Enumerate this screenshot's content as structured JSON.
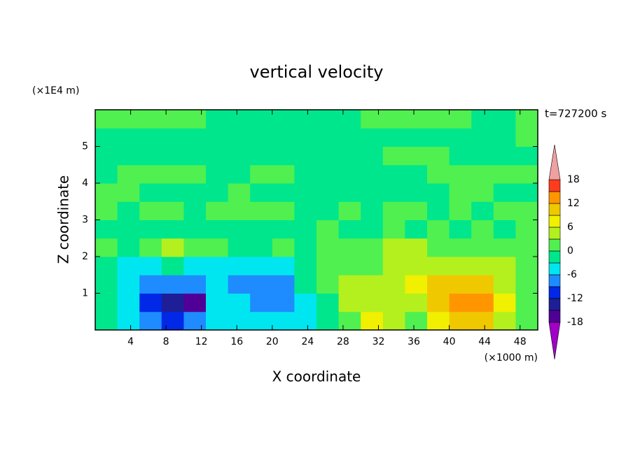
{
  "chart_data": {
    "type": "contour",
    "title": "vertical velocity",
    "x_label": "X coordinate",
    "y_label": "Z coordinate",
    "x_unit": "(×1000 m)",
    "y_unit": "(×1E4 m)",
    "annotation": "t=727200 s",
    "xlim": [
      0,
      50
    ],
    "ylim": [
      0,
      6
    ],
    "xticks": [
      4,
      8,
      12,
      16,
      20,
      24,
      28,
      32,
      36,
      40,
      44,
      48
    ],
    "yticks": [
      1,
      2,
      3,
      4,
      5
    ],
    "x": [
      1.25,
      3.75,
      6.25,
      8.75,
      11.25,
      13.75,
      16.25,
      18.75,
      21.25,
      23.75,
      26.25,
      28.75,
      31.25,
      33.75,
      36.25,
      38.75,
      41.25,
      43.75,
      46.25,
      48.75
    ],
    "y": [
      0.25,
      0.75,
      1.25,
      1.75,
      2.25,
      2.75,
      3.25,
      3.75,
      4.25,
      4.75,
      5.25,
      5.75
    ],
    "z": [
      [
        -1,
        -4,
        -7,
        -10,
        -9,
        -5,
        -5,
        -4,
        -5,
        -4,
        -1,
        2,
        7,
        5,
        2,
        8,
        10,
        9,
        5,
        2
      ],
      [
        -2,
        -5,
        -10,
        -14,
        -16,
        -6,
        -5,
        -7,
        -8,
        -4,
        -1,
        3,
        5,
        5,
        4,
        9,
        13,
        12,
        6,
        2
      ],
      [
        -2,
        -4,
        -7,
        -9,
        -7,
        -5,
        -7,
        -8,
        -7,
        -3,
        0,
        3,
        4,
        5,
        6,
        9,
        10,
        9,
        5,
        2
      ],
      [
        -1,
        -4,
        -4,
        -3,
        -4,
        -4,
        -5,
        -5,
        -4,
        -2,
        0,
        2,
        2,
        3,
        4,
        4,
        5,
        4,
        3,
        1
      ],
      [
        1,
        -1,
        0,
        3,
        1,
        0,
        -1,
        -1,
        0,
        -1,
        0,
        1,
        2,
        3,
        3,
        2,
        2,
        2,
        1,
        1
      ],
      [
        -1,
        -2,
        -1,
        -1,
        -2,
        -1,
        -1,
        -2,
        -1,
        -1,
        1,
        -1,
        -1,
        1,
        -1,
        1,
        -1,
        1,
        -1,
        1
      ],
      [
        1,
        -1,
        1,
        1,
        -1,
        1,
        1,
        1,
        1,
        -1,
        -1,
        1,
        -1,
        1,
        1,
        -1,
        1,
        -1,
        1,
        1
      ],
      [
        1,
        1,
        -1,
        -1,
        -1,
        -1,
        1,
        -1,
        -1,
        -1,
        -1,
        -1,
        -1,
        -1,
        -1,
        -1,
        1,
        1,
        -1,
        -1
      ],
      [
        -1,
        1,
        1,
        1,
        1,
        -1,
        -1,
        1,
        1,
        -1,
        -1,
        -1,
        -1,
        -1,
        -1,
        1,
        1,
        1,
        1,
        1
      ],
      [
        -1,
        -1,
        -1,
        -1,
        -1,
        -1,
        -1,
        -1,
        -1,
        -1,
        -1,
        -1,
        -1,
        1,
        2,
        1,
        -1,
        -1,
        -1,
        -1
      ],
      [
        -1,
        -1,
        -1,
        -1,
        -1,
        -1,
        -1,
        -1,
        -1,
        -1,
        -1,
        -1,
        -1,
        -1,
        -1,
        -1,
        -1,
        -1,
        -1,
        1
      ],
      [
        1,
        1,
        1,
        1,
        1,
        -1,
        -1,
        -1,
        -1,
        -1,
        -1,
        -1,
        1,
        1,
        1,
        1,
        1,
        -1,
        -1,
        1
      ]
    ],
    "levels": [
      -18,
      -15,
      -12,
      -9,
      -6,
      -3,
      0,
      3,
      6,
      9,
      12,
      15,
      18
    ],
    "colors": [
      "#a000c8",
      "#500096",
      "#1e1e96",
      "#0028e6",
      "#1e8cff",
      "#00e6f0",
      "#00e68c",
      "#50f050",
      "#b4f01e",
      "#f0f000",
      "#f0c800",
      "#ff9600",
      "#ff3c1e",
      "#f0a0a0"
    ],
    "colorbar_ticks": [
      -18,
      -12,
      -6,
      0,
      6,
      12,
      18
    ]
  }
}
